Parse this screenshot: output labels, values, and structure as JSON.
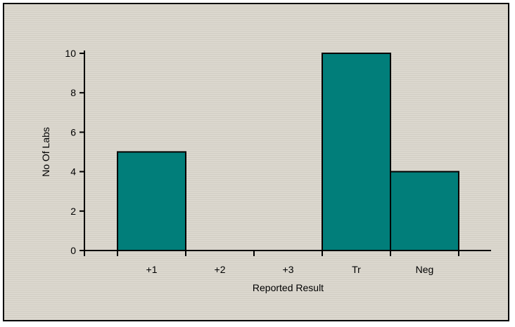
{
  "chart_data": {
    "type": "bar",
    "title": "",
    "xlabel": "Reported Result",
    "ylabel": "No Of Labs",
    "categories": [
      "+1",
      "+2",
      "+3",
      "Tr",
      "Neg"
    ],
    "values": [
      5,
      0,
      0,
      10,
      4
    ],
    "ylim": [
      0,
      10
    ],
    "yticks": [
      0,
      2,
      4,
      6,
      8,
      10
    ],
    "grid": false,
    "legend": "none",
    "colors": {
      "bar": "#017e7a",
      "bar_outline": "#000000",
      "background": "#dcd8cf",
      "background_stripe": "#d2cec4"
    }
  }
}
